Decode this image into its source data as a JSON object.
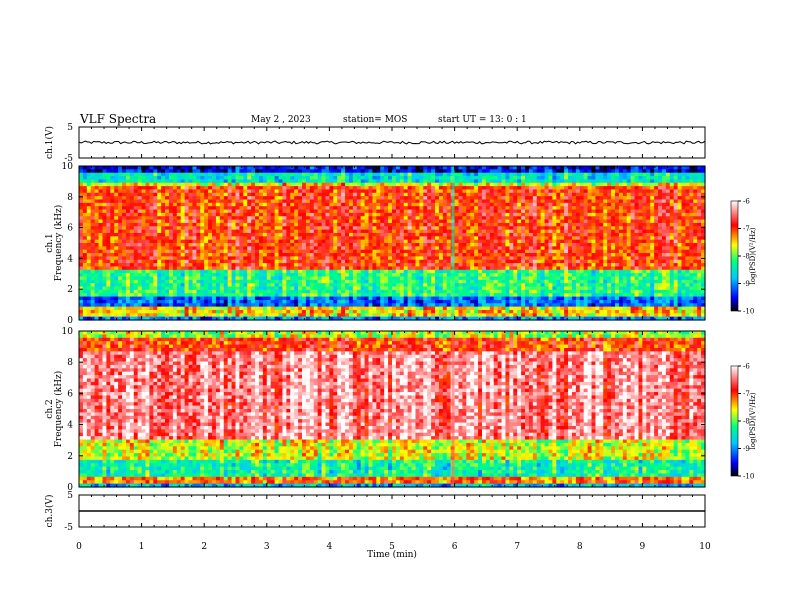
{
  "header": {
    "title": "VLF Spectra",
    "date": "May 2 , 2023",
    "station": "station= MOS",
    "start": "start UT = 13: 0 : 1"
  },
  "chart_data": {
    "type": "heatmap",
    "xlabel": "Time (min)",
    "xlim": [
      0,
      10
    ],
    "x_ticks": [
      "0",
      "1",
      "2",
      "3",
      "4",
      "5",
      "6",
      "7",
      "8",
      "9",
      "10"
    ],
    "panels": [
      {
        "name": "ch.1(V)",
        "type": "line",
        "ylabel": "ch.1(V)",
        "ylim": [
          -5,
          5
        ],
        "y_ticks": [
          "5",
          "-5"
        ],
        "level": 0
      },
      {
        "name": "ch.1",
        "type": "heatmap",
        "ylabel": "ch.1 Frequency (kHz)",
        "ylim": [
          0,
          10
        ],
        "y_ticks": [
          "0",
          "2",
          "4",
          "6",
          "8",
          "10"
        ]
      },
      {
        "name": "ch.2",
        "type": "heatmap",
        "ylabel": "ch.2 Frequency (kHz)",
        "ylim": [
          0,
          10
        ],
        "y_ticks": [
          "0",
          "2",
          "4",
          "6",
          "8",
          "10"
        ]
      },
      {
        "name": "ch.3(V)",
        "type": "line",
        "ylabel": "ch.3(V)",
        "ylim": [
          -5,
          5
        ],
        "y_ticks": [
          "5",
          "-5"
        ],
        "level": 0
      }
    ],
    "colorbar": {
      "label": "log(PSD)(V²/Hz)",
      "range": [
        -10,
        -6
      ],
      "ticks": [
        "-6",
        "-7",
        "-8",
        "-9",
        "-10"
      ],
      "colors": [
        "#000000",
        "#0000ff",
        "#00c8ff",
        "#00ff80",
        "#ffff00",
        "#ff0000",
        "#ffffff"
      ]
    }
  }
}
